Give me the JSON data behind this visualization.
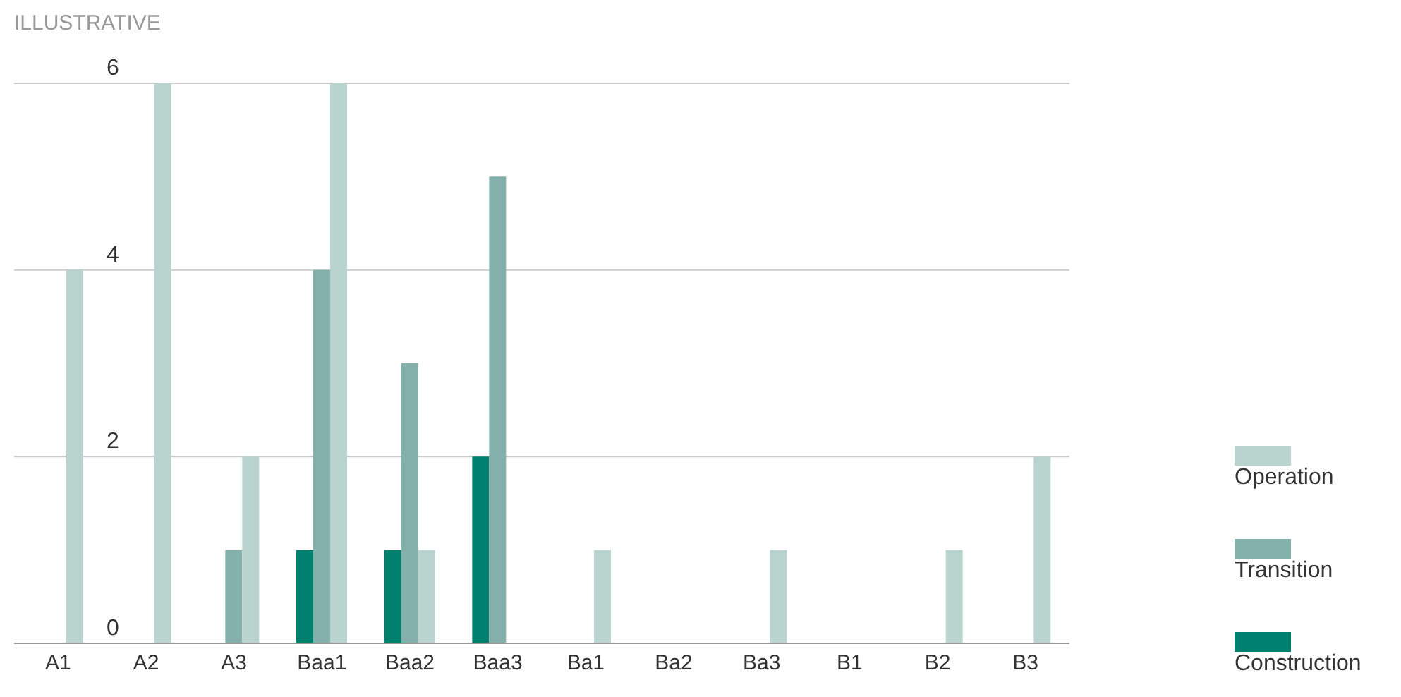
{
  "chart_data": {
    "type": "bar",
    "title": "ILLUSTRATIVE",
    "categories": [
      "A1",
      "A2",
      "A3",
      "Baa1",
      "Baa2",
      "Baa3",
      "Ba1",
      "Ba2",
      "Ba3",
      "B1",
      "B2",
      "B3"
    ],
    "series": [
      {
        "name": "Construction",
        "color": "#00806f",
        "values": [
          0,
          0,
          0,
          1,
          1,
          2,
          0,
          0,
          0,
          0,
          0,
          0
        ]
      },
      {
        "name": "Transition",
        "color": "#84b0ab",
        "values": [
          0,
          0,
          1,
          4,
          3,
          5,
          0,
          0,
          0,
          0,
          0,
          0
        ]
      },
      {
        "name": "Operation",
        "color": "#b9d3cf",
        "values": [
          4,
          6,
          2,
          6,
          1,
          0,
          1,
          0,
          1,
          0,
          1,
          2
        ]
      }
    ],
    "ylim": [
      0,
      6
    ],
    "yticks": [
      0,
      2,
      4,
      6
    ],
    "grid": "y",
    "legend": "bottom right"
  }
}
